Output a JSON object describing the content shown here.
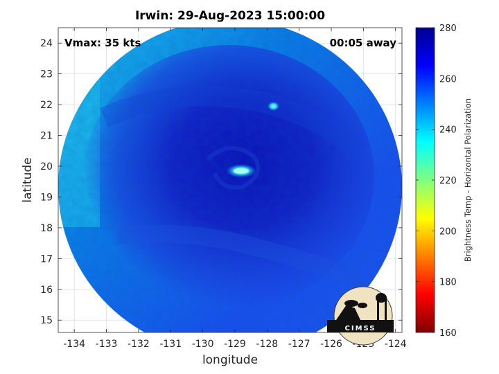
{
  "title": "Irwin: 29-Aug-2023 15:00:00",
  "vmax_label": "Vmax: 35 kts",
  "time_label": "00:05 away",
  "map": {
    "xlabel": "longitude",
    "ylabel": "latitude",
    "xlim": [
      -134.5,
      -123.8
    ],
    "ylim": [
      14.6,
      24.5
    ],
    "x_ticks": [
      -134,
      -133,
      -132,
      -131,
      -130,
      -129,
      -128,
      -127,
      -126,
      -125,
      -124
    ],
    "y_ticks": [
      15,
      16,
      17,
      18,
      19,
      20,
      21,
      22,
      23,
      24
    ],
    "grid": true,
    "swath_center": [
      -129.1,
      19.4
    ],
    "storm_center": [
      -128.9,
      19.9
    ],
    "warm_spots": [
      [
        -128.85,
        19.85
      ],
      [
        -127.8,
        21.95
      ]
    ]
  },
  "colorbar": {
    "label": "Brightness Temp - Horizontal Polarization",
    "range": [
      160,
      280
    ],
    "ticks": [
      160,
      180,
      200,
      220,
      240,
      260,
      280
    ],
    "colormap": "jet",
    "colors": [
      "#800000",
      "#ff0000",
      "#ffff00",
      "#00ffff",
      "#0000ff",
      "#00008f"
    ]
  },
  "logo": {
    "text": "CIMSS"
  }
}
